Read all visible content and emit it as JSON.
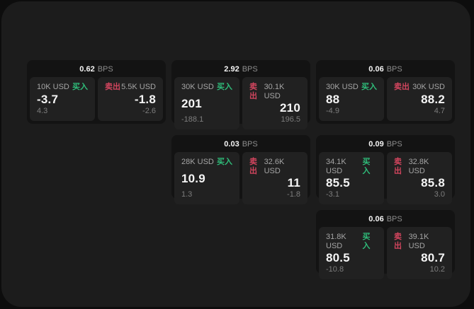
{
  "labels": {
    "bps": "BPS",
    "buy": "买入",
    "sell": "卖出"
  },
  "colors": {
    "page_bg": "#0d0d0d",
    "panel_bg": "#1c1c1c",
    "card_bg": "#131313",
    "subpanel_bg": "#212121",
    "buy_green": "#2fbd7a",
    "sell_red": "#d2455e",
    "value_white": "#f5f5f5",
    "muted_gray": "#8d8d8d"
  },
  "cards": [
    {
      "bps": "0.62",
      "buy": {
        "size": "10K USD",
        "value": "-3.7",
        "delta": "4.3"
      },
      "sell": {
        "size": "5.5K USD",
        "value": "-1.8",
        "delta": "-2.6"
      }
    },
    {
      "bps": "2.92",
      "buy": {
        "size": "30K USD",
        "value": "201",
        "delta": "-188.1"
      },
      "sell": {
        "size": "30.1K USD",
        "value": "210",
        "delta": "196.5"
      }
    },
    {
      "bps": "0.06",
      "buy": {
        "size": "30K USD",
        "value": "88",
        "delta": "-4.9"
      },
      "sell": {
        "size": "30K USD",
        "value": "88.2",
        "delta": "4.7"
      }
    },
    {
      "bps": "0.03",
      "buy": {
        "size": "28K USD",
        "value": "10.9",
        "delta": "1.3"
      },
      "sell": {
        "size": "32.6K USD",
        "value": "11",
        "delta": "-1.8"
      }
    },
    {
      "bps": "0.09",
      "buy": {
        "size": "34.1K USD",
        "value": "85.5",
        "delta": "-3.1"
      },
      "sell": {
        "size": "32.8K USD",
        "value": "85.8",
        "delta": "3.0"
      }
    },
    {
      "bps": "0.06",
      "buy": {
        "size": "31.8K USD",
        "value": "80.5",
        "delta": "-10.8"
      },
      "sell": {
        "size": "39.1K USD",
        "value": "80.7",
        "delta": "10.2"
      }
    }
  ]
}
